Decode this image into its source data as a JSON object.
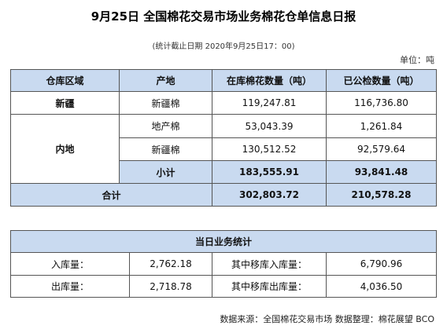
{
  "header": {
    "title": "9月25日 全国棉花交易市场业务棉花仓单信息日报",
    "subtitle": "(统计截止日期 2020年9月25日17：00)",
    "unit": "单位：吨"
  },
  "table": {
    "columns": [
      "仓库区域",
      "产地",
      "在库棉花数量（吨）",
      "已公检数量（吨）"
    ],
    "rows": [
      [
        "新疆",
        "新疆棉",
        "119,247.81",
        "116,736.80"
      ],
      [
        "内地",
        "地产棉",
        "53,043.39",
        "1,261.84"
      ],
      [
        "新疆棉",
        "130,512.52",
        "92,579.64"
      ],
      [
        "小计",
        "183,555.91",
        "93,841.48"
      ],
      [
        "合计",
        "302,803.72",
        "210,578.28"
      ]
    ]
  },
  "stats": {
    "title": "当日业务统计",
    "rows": [
      [
        "入库量：",
        "2,762.18",
        "其中移库入库量：",
        "6,790.96"
      ],
      [
        "出库量：",
        "2,718.78",
        "其中移库出库量：",
        "4,036.50"
      ]
    ]
  },
  "footer": "数据来源：全国棉花交易市场 数据整理：棉花展望 BCO"
}
